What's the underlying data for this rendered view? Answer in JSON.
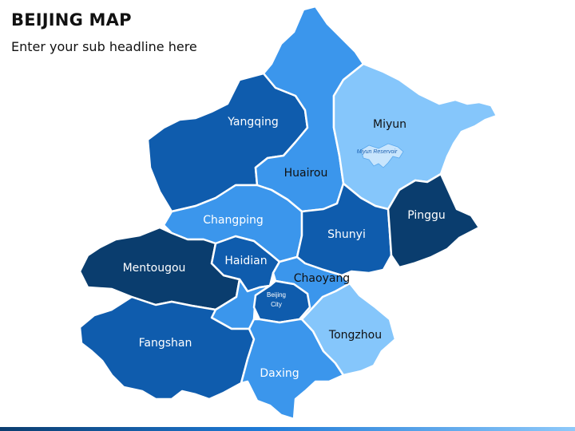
{
  "header": {
    "title": "BEIJING MAP",
    "subtitle": "Enter your sub headline here"
  },
  "colors": {
    "darkest": "#0a3d6e",
    "dark": "#0f5cad",
    "medium": "#1e7ad6",
    "light": "#3b96ec",
    "lightest": "#85c6fb",
    "bar_left": "#0b3d6f",
    "bar_right": "#8ec9fa"
  },
  "map": {
    "regions": [
      {
        "id": "yanqing",
        "label": "Yangqing",
        "shade": "dark"
      },
      {
        "id": "huairou",
        "label": "Huairou",
        "shade": "light"
      },
      {
        "id": "miyun",
        "label": "Miyun",
        "shade": "lightest"
      },
      {
        "id": "changping",
        "label": "Changping",
        "shade": "light"
      },
      {
        "id": "shunyi",
        "label": "Shunyi",
        "shade": "dark"
      },
      {
        "id": "pinggu",
        "label": "Pinggu",
        "shade": "darkest"
      },
      {
        "id": "mentougou",
        "label": "Mentougou",
        "shade": "darkest"
      },
      {
        "id": "haidian",
        "label": "Haidian",
        "shade": "dark"
      },
      {
        "id": "chaoyang",
        "label": "Chaoyang",
        "shade": "light"
      },
      {
        "id": "beijing_city",
        "label": "Beijing City",
        "label_lines": [
          "Beijing",
          "City"
        ],
        "shade": "dark"
      },
      {
        "id": "fengtai",
        "label": "",
        "shade": "light"
      },
      {
        "id": "fangshan",
        "label": "Fangshan",
        "shade": "dark"
      },
      {
        "id": "daxing",
        "label": "Daxing",
        "shade": "light"
      },
      {
        "id": "tongzhou",
        "label": "Tongzhou",
        "shade": "lightest"
      }
    ],
    "reservoir": "Miyun Reservoir"
  }
}
